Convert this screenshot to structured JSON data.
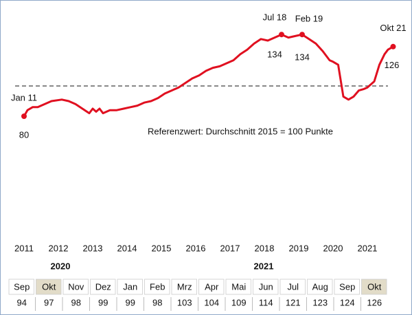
{
  "chart_data": {
    "type": "line",
    "x": [
      2011.0,
      2011.1,
      2011.25,
      2011.4,
      2011.6,
      2011.8,
      2012.1,
      2012.3,
      2012.5,
      2012.7,
      2012.9,
      2013.0,
      2013.1,
      2013.2,
      2013.3,
      2013.5,
      2013.7,
      2013.9,
      2014.1,
      2014.3,
      2014.5,
      2014.7,
      2014.9,
      2015.1,
      2015.3,
      2015.5,
      2015.7,
      2015.9,
      2016.1,
      2016.3,
      2016.5,
      2016.7,
      2016.9,
      2017.1,
      2017.3,
      2017.5,
      2017.7,
      2017.9,
      2018.1,
      2018.3,
      2018.5,
      2018.7,
      2018.9,
      2019.1,
      2019.3,
      2019.5,
      2019.7,
      2019.9,
      2020.0,
      2020.15,
      2020.3,
      2020.45,
      2020.6,
      2020.75,
      2020.9,
      2021.0,
      2021.2,
      2021.35,
      2021.5,
      2021.6,
      2021.75
    ],
    "series": [
      {
        "color": "#e01020",
        "values": [
          80,
          84,
          86,
          86,
          88,
          90,
          91,
          90,
          88,
          85,
          82,
          85,
          83,
          85,
          82,
          84,
          84,
          85,
          86,
          87,
          89,
          90,
          92,
          95,
          97,
          99,
          102,
          105,
          107,
          110,
          112,
          113,
          115,
          117,
          121,
          124,
          128,
          131,
          130,
          132,
          134,
          132,
          133,
          134,
          131,
          128,
          123,
          117,
          116,
          114,
          93,
          91,
          93,
          97,
          98,
          99,
          103,
          114,
          121,
          124,
          126
        ]
      }
    ],
    "xlim": [
      2010.7,
      2022.1
    ],
    "ylim": [
      0,
      150
    ],
    "xticks": [
      2011,
      2012,
      2013,
      2014,
      2015,
      2016,
      2017,
      2018,
      2019,
      2020,
      2021
    ],
    "reference_line": 100,
    "reference_text": "Referenzwert:  Durchschnitt 2015 = 100 Punkte",
    "annotations": [
      {
        "text": "Jan 11",
        "x": 2011.0,
        "value": 80
      },
      {
        "text": "Jul 18",
        "x": 2018.5,
        "value": 134
      },
      {
        "text": "Feb 19",
        "x": 2019.1,
        "value": 134
      },
      {
        "text": "Okt 21",
        "x": 2021.75,
        "value": 126
      }
    ]
  },
  "table": {
    "years": [
      "2020",
      "2021"
    ],
    "columns": [
      {
        "month": "Sep",
        "value": 94
      },
      {
        "month": "Okt",
        "value": 97,
        "highlight": true
      },
      {
        "month": "Nov",
        "value": 98
      },
      {
        "month": "Dez",
        "value": 99
      },
      {
        "month": "Jan",
        "value": 99
      },
      {
        "month": "Feb",
        "value": 98
      },
      {
        "month": "Mrz",
        "value": 103
      },
      {
        "month": "Apr",
        "value": 104
      },
      {
        "month": "Mai",
        "value": 109
      },
      {
        "month": "Jun",
        "value": 114
      },
      {
        "month": "Jul",
        "value": 121
      },
      {
        "month": "Aug",
        "value": 123
      },
      {
        "month": "Sep",
        "value": 124
      },
      {
        "month": "Okt",
        "value": 126,
        "highlight": true
      }
    ]
  }
}
